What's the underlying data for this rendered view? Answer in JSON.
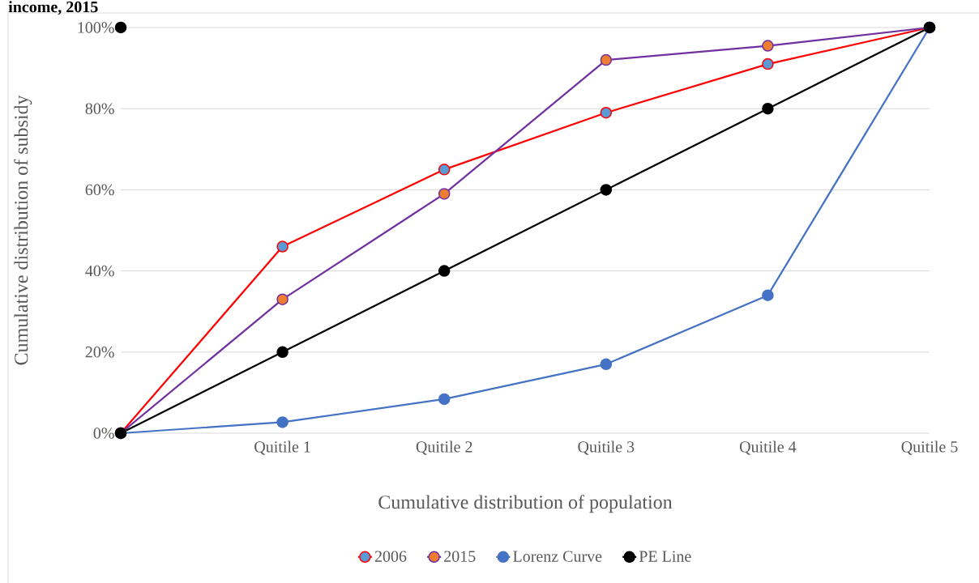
{
  "chart_data": {
    "type": "line",
    "title": "income, 2015",
    "xlabel": "Cumulative distribution of population",
    "ylabel": "Cumulative distribution of subsidy",
    "categories": [
      null,
      "Quitile 1",
      "Quitile 2",
      "Quitile 3",
      "Quitile 4",
      "Quitile 5"
    ],
    "ylim": [
      0,
      100
    ],
    "yticks": [
      {
        "value": 0,
        "label": "0%"
      },
      {
        "value": 20,
        "label": "20%"
      },
      {
        "value": 40,
        "label": "40%"
      },
      {
        "value": 60,
        "label": "60%"
      },
      {
        "value": 80,
        "label": "80%"
      },
      {
        "value": 100,
        "label": "100%"
      }
    ],
    "grid": "y",
    "legend": "bottom",
    "marker": "circle",
    "line_style": "solid",
    "series": [
      {
        "name": "2006",
        "color": "#ff0000",
        "colors": [
          "#5b9bd5",
          "#5b9bd5",
          "#5b9bd5",
          "#5b9bd5",
          "#5b9bd5",
          "#5b9bd5"
        ],
        "values": [
          0,
          46,
          65,
          79,
          91,
          100
        ]
      },
      {
        "name": "2015",
        "color": "#7030a0",
        "colors": [
          "#ed7d31",
          "#ed7d31",
          "#ed7d31",
          "#ed7d31",
          "#ed7d31",
          "#ed7d31"
        ],
        "values": [
          0,
          33,
          59,
          92,
          95.5,
          100
        ]
      },
      {
        "name": "Lorenz Curve",
        "color": "#4472c4",
        "values": [
          0,
          2.7,
          8.4,
          17,
          34,
          100
        ]
      },
      {
        "name": "PE Line",
        "color": "#000000",
        "values": [
          0,
          20,
          40,
          60,
          80,
          100
        ]
      },
      {
        "type": "scatter",
        "color": "#000000",
        "values": [
          100,
          null,
          null,
          null,
          null,
          null
        ]
      }
    ]
  }
}
